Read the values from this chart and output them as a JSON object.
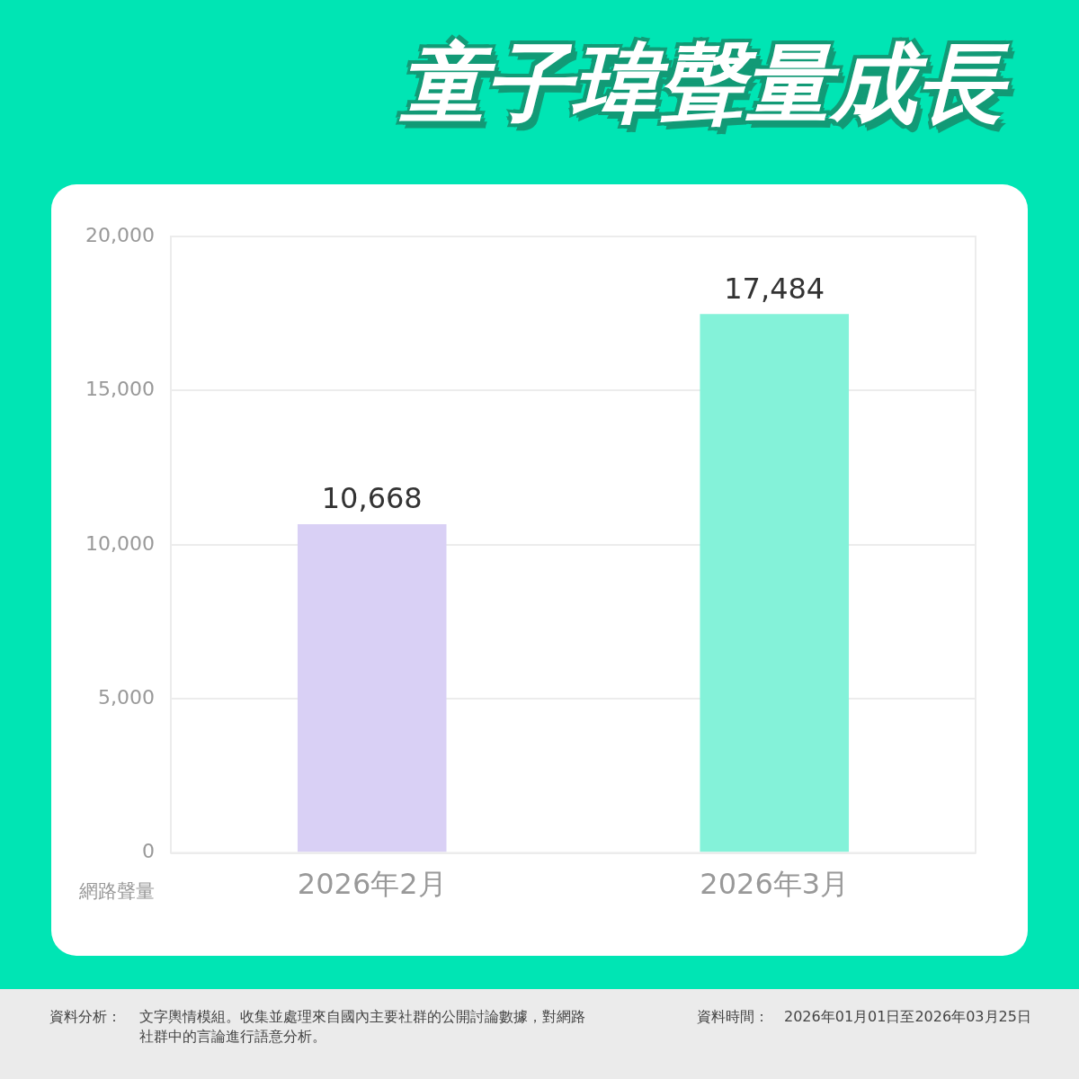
{
  "chart_data": {
    "type": "bar",
    "title": "童子瑋聲量成長",
    "ylabel": "網路聲量",
    "categories": [
      "2026年2月",
      "2026年3月"
    ],
    "values": [
      10668,
      17484
    ],
    "colors": [
      "#d9d0f5",
      "#84f2d9"
    ],
    "value_labels": [
      "10,668",
      "17,484"
    ],
    "ylim": [
      0,
      20000
    ],
    "yticks": [
      {
        "value": 0,
        "label": "0"
      },
      {
        "value": 5000,
        "label": "5,000"
      },
      {
        "value": 10000,
        "label": "10,000"
      },
      {
        "value": 15000,
        "label": "15,000"
      },
      {
        "value": 20000,
        "label": "20,000"
      }
    ],
    "grid": "y",
    "legend": false,
    "annotations": [
      "資料分析：",
      "文字輿情模組。收集並處理來自國內主要社群的公開討論數據，對網路社群中的言論進行語意分析。",
      "資料時間：",
      "2026年01月01日至2026年03月25日"
    ]
  }
}
